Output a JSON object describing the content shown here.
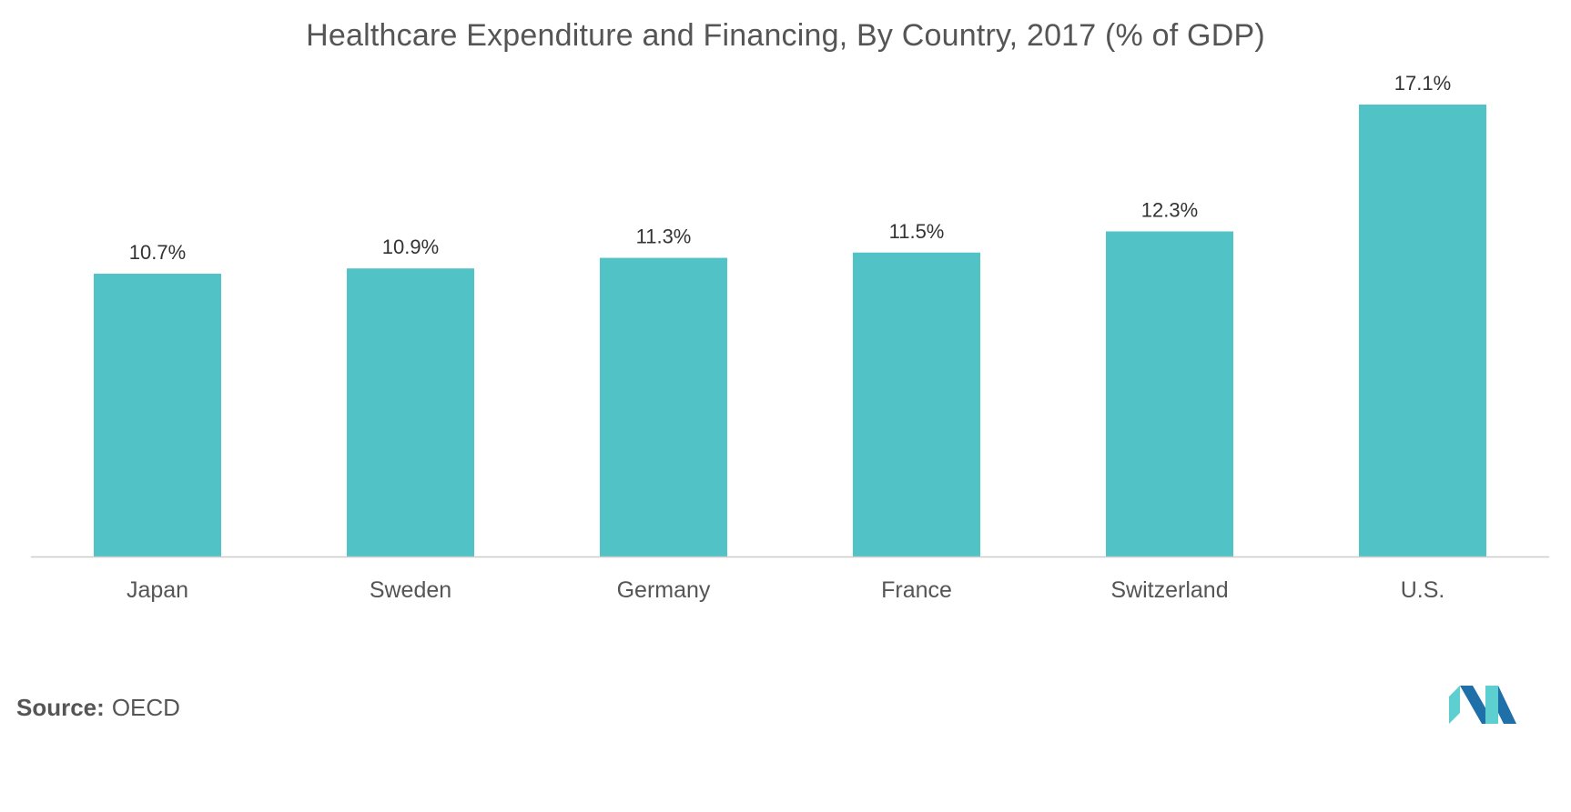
{
  "chart_data": {
    "type": "bar",
    "title": "Healthcare Expenditure and Financing, By Country, 2017 (% of GDP)",
    "categories": [
      "Japan",
      "Sweden",
      "Germany",
      "France",
      "Switzerland",
      "U.S."
    ],
    "values": [
      10.7,
      10.9,
      11.3,
      11.5,
      12.3,
      17.1
    ],
    "data_labels": [
      "10.7%",
      "10.9%",
      "11.3%",
      "11.5%",
      "12.3%",
      "17.1%"
    ],
    "xlabel": "",
    "ylabel": "",
    "ylim": [
      0,
      18
    ],
    "grid": false,
    "legend": "none",
    "bar_color": "#51c3c6",
    "axis_color": "#cccccc",
    "text_color": "#555555"
  },
  "footer": {
    "source_label": "Source:",
    "source_value": "OECD"
  },
  "logo": {
    "colors": [
      "#1f6fa8",
      "#5ecfd0"
    ]
  }
}
